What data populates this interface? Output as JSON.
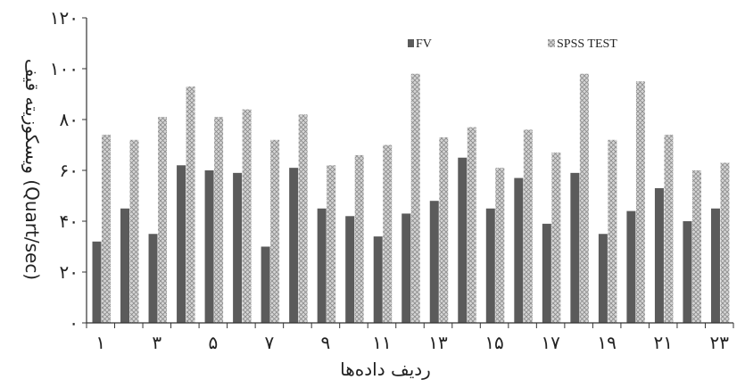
{
  "chart_data": {
    "type": "bar",
    "categories": [
      "1",
      "2",
      "3",
      "4",
      "5",
      "6",
      "7",
      "8",
      "9",
      "10",
      "11",
      "12",
      "13",
      "14",
      "15",
      "16",
      "17",
      "18",
      "19",
      "20",
      "21",
      "22",
      "23"
    ],
    "x_tick_labels": [
      "۱",
      "۳",
      "۵",
      "۷",
      "۹",
      "۱۱",
      "۱۳",
      "۱۵",
      "۱۷",
      "۱۹",
      "۲۱",
      "۲۳"
    ],
    "series": [
      {
        "name": "FV",
        "color": "#5b5b5b",
        "values": [
          32,
          45,
          35,
          62,
          60,
          59,
          30,
          61,
          45,
          42,
          34,
          43,
          48,
          65,
          45,
          57,
          39,
          59,
          35,
          44,
          53,
          40,
          45
        ]
      },
      {
        "name": "SPSS TEST",
        "color": "#cfcfcf",
        "pattern": "crosshatch",
        "values": [
          74,
          72,
          81,
          93,
          81,
          84,
          72,
          82,
          62,
          66,
          70,
          98,
          73,
          77,
          61,
          76,
          67,
          98,
          72,
          95,
          74,
          60,
          63
        ]
      }
    ],
    "y_ticks": [
      "۰",
      "۲۰",
      "۴۰",
      "۶۰",
      "۸۰",
      "۱۰۰",
      "۱۲۰"
    ],
    "ylim": [
      0,
      120
    ],
    "xlabel": "ردیف داده‌ها",
    "ylabel": "ویسکوزیته قیف (Quart/sec)",
    "legend_position": "top-right",
    "grid": false
  }
}
